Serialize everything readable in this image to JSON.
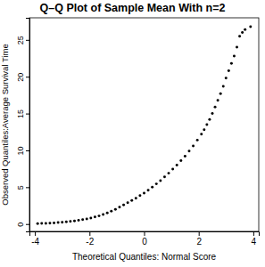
{
  "chart_data": {
    "type": "scatter",
    "title": "Q–Q Plot of Sample Mean With n=2",
    "x_label": "Theoretical Quantiles: Normal Score",
    "y_label": "Observed Quantiles:Average Survival Time",
    "x": [
      -3.9,
      -3.75,
      -3.6,
      -3.45,
      -3.3,
      -3.15,
      -3.0,
      -2.85,
      -2.7,
      -2.55,
      -2.4,
      -2.25,
      -2.1,
      -1.95,
      -1.8,
      -1.65,
      -1.5,
      -1.35,
      -1.2,
      -1.05,
      -0.9,
      -0.75,
      -0.6,
      -0.45,
      -0.3,
      -0.15,
      0,
      0.15,
      0.3,
      0.45,
      0.6,
      0.75,
      0.9,
      1.05,
      1.2,
      1.35,
      1.5,
      1.65,
      1.8,
      1.95,
      2.1,
      2.2,
      2.3,
      2.4,
      2.5,
      2.6,
      2.7,
      2.8,
      2.9,
      3.0,
      3.1,
      3.2,
      3.3,
      3.4,
      3.5,
      3.6,
      3.7,
      3.9
    ],
    "values": [
      0.05,
      0.08,
      0.1,
      0.12,
      0.15,
      0.2,
      0.25,
      0.3,
      0.35,
      0.42,
      0.5,
      0.6,
      0.7,
      0.82,
      0.95,
      1.1,
      1.3,
      1.5,
      1.75,
      2.0,
      2.3,
      2.6,
      2.9,
      3.2,
      3.5,
      3.85,
      4.2,
      4.6,
      5.0,
      5.45,
      5.9,
      6.4,
      6.9,
      7.45,
      8.0,
      8.6,
      9.2,
      9.9,
      10.6,
      11.4,
      12.2,
      12.8,
      13.5,
      14.2,
      15.0,
      15.9,
      16.8,
      17.7,
      18.7,
      19.8,
      20.8,
      21.8,
      22.8,
      24.0,
      25.5,
      26.0,
      26.4,
      26.8
    ],
    "color": "#000000",
    "marker": "circle",
    "xlim": [
      -4.2,
      4.2
    ],
    "xticks": [
      -4,
      -2,
      0,
      2,
      4
    ],
    "ylim": [
      -1,
      28
    ],
    "yticks": [
      0,
      5,
      10,
      15,
      20,
      25
    ],
    "grid": false
  }
}
